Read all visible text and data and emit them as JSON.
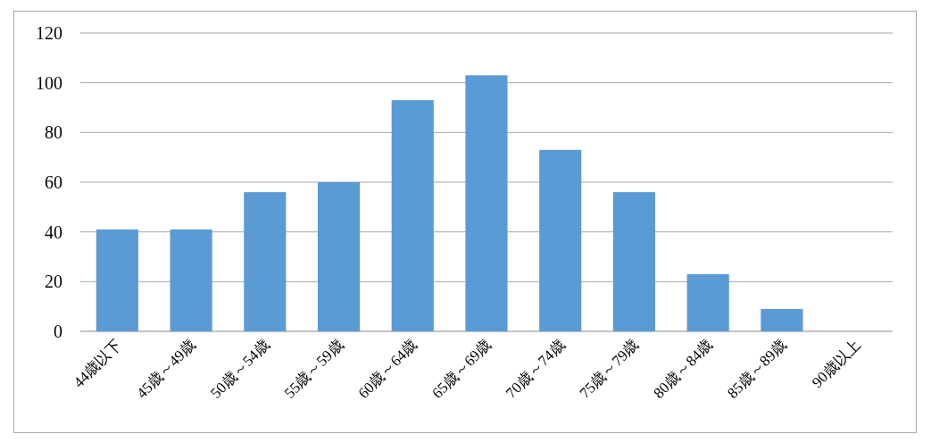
{
  "chart_data": {
    "type": "bar",
    "categories": [
      "44歳以下",
      "45歳～49歳",
      "50歳～54歳",
      "55歳～59歳",
      "60歳～64歳",
      "65歳～69歳",
      "70歳～74歳",
      "75歳～79歳",
      "80歳～84歳",
      "85歳～89歳",
      "90歳以上"
    ],
    "values": [
      41,
      41,
      56,
      60,
      93,
      103,
      73,
      56,
      23,
      9,
      0
    ],
    "color": "#5b9bd5",
    "ylim": [
      0,
      120
    ],
    "yticks": [
      0,
      20,
      40,
      60,
      80,
      100,
      120
    ],
    "grid": "y"
  }
}
